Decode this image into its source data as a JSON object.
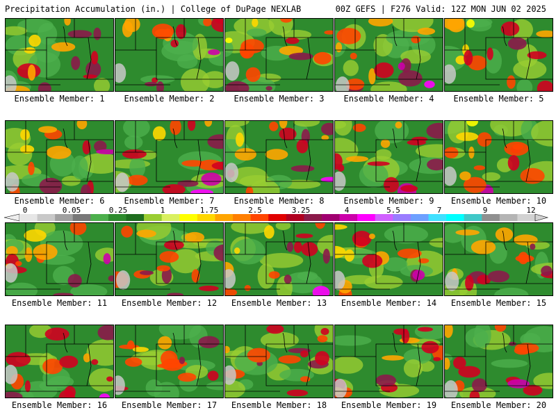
{
  "header": {
    "title": "Precipitation Accumulation (in.) | College of DuPage NEXLAB",
    "run_info": "00Z GEFS | F276 Valid: 12Z MON JUN 02 2025"
  },
  "colorbar": {
    "tick_labels": [
      "0",
      "0.05",
      "0.25",
      "1",
      "1.75",
      "2.5",
      "3.25",
      "4",
      "5.5",
      "7",
      "9",
      "12"
    ],
    "colors": [
      "#e6e6e6",
      "#c8c8c8",
      "#a0a0a0",
      "#787878",
      "#4caf4c",
      "#2e8b2e",
      "#1f6e1f",
      "#9acd32",
      "#d9f060",
      "#ffff00",
      "#ffd700",
      "#ffa500",
      "#ff7f00",
      "#ff4500",
      "#e00000",
      "#b00020",
      "#8b1a4a",
      "#a00070",
      "#cc00aa",
      "#ff00ff",
      "#d060ff",
      "#9a7dff",
      "#6ea0ff",
      "#40e0ff",
      "#00ffff",
      "#40c8c8",
      "#909090",
      "#b4b4b4",
      "#d2d2d2"
    ]
  },
  "panels": [
    {
      "label": "Ensemble Member: 1"
    },
    {
      "label": "Ensemble Member: 2"
    },
    {
      "label": "Ensemble Member: 3"
    },
    {
      "label": "Ensemble Member: 4"
    },
    {
      "label": "Ensemble Member: 5"
    },
    {
      "label": "Ensemble Member: 6"
    },
    {
      "label": "Ensemble Member: 7"
    },
    {
      "label": "Ensemble Member: 8"
    },
    {
      "label": "Ensemble Member: 9"
    },
    {
      "label": "Ensemble Member: 10"
    },
    {
      "label": "Ensemble Member: 11"
    },
    {
      "label": "Ensemble Member: 12"
    },
    {
      "label": "Ensemble Member: 13"
    },
    {
      "label": "Ensemble Member: 14"
    },
    {
      "label": "Ensemble Member: 15"
    },
    {
      "label": "Ensemble Member: 16"
    },
    {
      "label": "Ensemble Member: 17"
    },
    {
      "label": "Ensemble Member: 18"
    },
    {
      "label": "Ensemble Member: 19"
    },
    {
      "label": "Ensemble Member: 20"
    }
  ]
}
